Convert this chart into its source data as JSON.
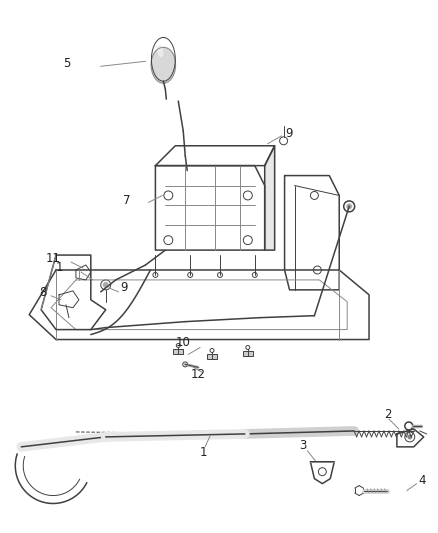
{
  "bg_color": "#ffffff",
  "line_color": "#404040",
  "gray_color": "#888888",
  "light_gray": "#cccccc",
  "label_color": "#222222",
  "font_size": 8.5,
  "fig_width": 4.38,
  "fig_height": 5.33,
  "dpi": 100
}
